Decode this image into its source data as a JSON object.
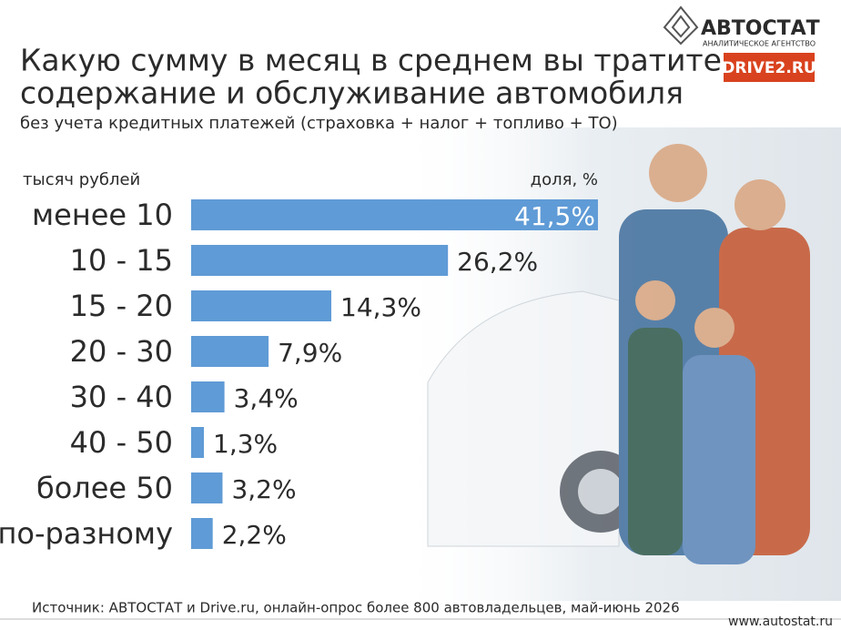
{
  "chart_data": {
    "type": "bar",
    "orientation": "horizontal",
    "title": [
      "Какую сумму в месяц в среднем вы тратите на",
      "содержание и обслуживание автомобиля"
    ],
    "subtitle": "без учета кредитных платежей (страховка + налог + топливо + ТО)",
    "category_label": "тысяч рублей",
    "value_label": "доля, %",
    "categories": [
      "менее 10",
      "10 - 15",
      "15 - 20",
      "20 - 30",
      "30 - 40",
      "40 - 50",
      "более 50",
      "по-разному"
    ],
    "values": [
      41.5,
      26.2,
      14.3,
      7.9,
      3.4,
      1.3,
      3.2,
      2.2
    ],
    "value_labels": [
      "41,5%",
      "26,2%",
      "14,3%",
      "7,9%",
      "3,4%",
      "1,3%",
      "3,2%",
      "2,2%"
    ],
    "color": "#5f9bd6"
  },
  "logo": {
    "name": "АВТОСТАТ",
    "tagline": "АНАЛИТИЧЕСКОЕ АГЕНТСТВО"
  },
  "partner": "DRIVE2.RU",
  "source": "Источник: АВТОСТАТ и Drive.ru, онлайн-опрос более 800 автовладельцев, май-июнь 2026",
  "website": "www.autostat.ru"
}
